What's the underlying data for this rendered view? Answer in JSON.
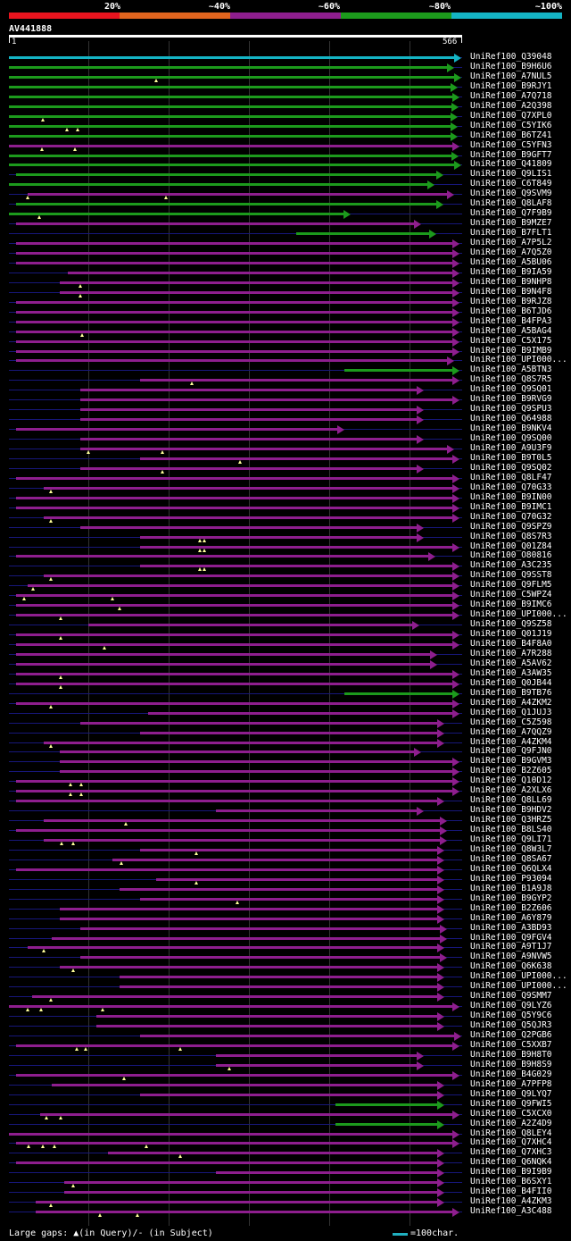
{
  "identity_scale": {
    "labels": [
      "20%",
      "~40%",
      "~60%",
      "~80%",
      "~100%"
    ],
    "colors": [
      "#e8141e",
      "#e0641e",
      "#8e1e8e",
      "#1c9a1c",
      "#14b4c4"
    ]
  },
  "query": {
    "name": "AV441888",
    "start": "1",
    "end": "566",
    "length": 566
  },
  "legend": {
    "gaps_text": "Large gaps: ▲(in Query)/- (in Subject)",
    "scale_text": "=100char.",
    "scale_color": "#20b0c0"
  },
  "hits": [
    {
      "name": "UniRef100_Q39048",
      "s": 1,
      "e": 566,
      "c": 4,
      "g": []
    },
    {
      "name": "UniRef100_B9H6U6",
      "s": 1,
      "e": 557,
      "c": 3,
      "g": []
    },
    {
      "name": "UniRef100_A7NUL5",
      "s": 1,
      "e": 566,
      "c": 3,
      "g": [
        185
      ]
    },
    {
      "name": "UniRef100_B9RJY1",
      "s": 1,
      "e": 562,
      "c": 3,
      "g": []
    },
    {
      "name": "UniRef100_A7Q718",
      "s": 1,
      "e": 564,
      "c": 3,
      "g": []
    },
    {
      "name": "UniRef100_A2Q398",
      "s": 1,
      "e": 563,
      "c": 3,
      "g": []
    },
    {
      "name": "UniRef100_Q7XPL0",
      "s": 1,
      "e": 562,
      "c": 3,
      "g": [
        43
      ]
    },
    {
      "name": "UniRef100_C5YIK6",
      "s": 1,
      "e": 561,
      "c": 3,
      "g": [
        74,
        87
      ]
    },
    {
      "name": "UniRef100_B6TZ41",
      "s": 1,
      "e": 561,
      "c": 3,
      "g": []
    },
    {
      "name": "UniRef100_C5YFN3",
      "s": 1,
      "e": 564,
      "c": 2,
      "g": [
        42,
        84
      ]
    },
    {
      "name": "UniRef100_B9GFT7",
      "s": 1,
      "e": 563,
      "c": 3,
      "g": []
    },
    {
      "name": "UniRef100_Q41809",
      "s": 1,
      "e": 566,
      "c": 3,
      "g": []
    },
    {
      "name": "UniRef100_Q9LIS1",
      "s": 10,
      "e": 544,
      "c": 3,
      "g": []
    },
    {
      "name": "UniRef100_C6T849",
      "s": 1,
      "e": 532,
      "c": 3,
      "g": []
    },
    {
      "name": "UniRef100_Q9SVM9",
      "s": 25,
      "e": 557,
      "c": 2,
      "g": [
        25,
        197
      ]
    },
    {
      "name": "UniRef100_Q8LAF8",
      "s": 10,
      "e": 544,
      "c": 3,
      "g": []
    },
    {
      "name": "UniRef100_Q7F9B9",
      "s": 1,
      "e": 427,
      "c": 3,
      "g": [
        39
      ]
    },
    {
      "name": "UniRef100_B9MZE7",
      "s": 10,
      "e": 516,
      "c": 2,
      "g": []
    },
    {
      "name": "UniRef100_B7FLT1",
      "s": 360,
      "e": 535,
      "c": 3,
      "g": []
    },
    {
      "name": "UniRef100_A7P5L2",
      "s": 10,
      "e": 564,
      "c": 2,
      "g": []
    },
    {
      "name": "UniRef100_A7Q5Z0",
      "s": 10,
      "e": 564,
      "c": 2,
      "g": []
    },
    {
      "name": "UniRef100_A5BU06",
      "s": 10,
      "e": 564,
      "c": 2,
      "g": []
    },
    {
      "name": "UniRef100_B9IA59",
      "s": 75,
      "e": 564,
      "c": 2,
      "g": []
    },
    {
      "name": "UniRef100_B9NHP8",
      "s": 65,
      "e": 564,
      "c": 2,
      "g": [
        90
      ]
    },
    {
      "name": "UniRef100_B9N4F8",
      "s": 65,
      "e": 564,
      "c": 2,
      "g": [
        90
      ]
    },
    {
      "name": "UniRef100_B9RJZ8",
      "s": 10,
      "e": 564,
      "c": 2,
      "g": []
    },
    {
      "name": "UniRef100_B6TJD6",
      "s": 10,
      "e": 564,
      "c": 2,
      "g": []
    },
    {
      "name": "UniRef100_B4FPA3",
      "s": 10,
      "e": 564,
      "c": 2,
      "g": []
    },
    {
      "name": "UniRef100_A5BAG4",
      "s": 10,
      "e": 564,
      "c": 2,
      "g": [
        93
      ]
    },
    {
      "name": "UniRef100_C5X175",
      "s": 10,
      "e": 564,
      "c": 2,
      "g": []
    },
    {
      "name": "UniRef100_B9IMB9",
      "s": 10,
      "e": 564,
      "c": 2,
      "g": []
    },
    {
      "name": "UniRef100_UPI000...",
      "s": 10,
      "e": 557,
      "c": 2,
      "g": []
    },
    {
      "name": "UniRef100_A5BTN3",
      "s": 421,
      "e": 564,
      "c": 3,
      "g": []
    },
    {
      "name": "UniRef100_Q8S7R5",
      "s": 165,
      "e": 564,
      "c": 2,
      "g": [
        230
      ]
    },
    {
      "name": "UniRef100_Q9SQ01",
      "s": 90,
      "e": 519,
      "c": 2,
      "g": []
    },
    {
      "name": "UniRef100_B9RVG9",
      "s": 90,
      "e": 564,
      "c": 2,
      "g": []
    },
    {
      "name": "UniRef100_Q9SPU3",
      "s": 90,
      "e": 519,
      "c": 2,
      "g": []
    },
    {
      "name": "UniRef100_Q64988",
      "s": 90,
      "e": 519,
      "c": 2,
      "g": []
    },
    {
      "name": "UniRef100_B9NKV4",
      "s": 10,
      "e": 420,
      "c": 2,
      "g": []
    },
    {
      "name": "UniRef100_Q9SQ00",
      "s": 90,
      "e": 519,
      "c": 2,
      "g": []
    },
    {
      "name": "UniRef100_A9U3F9",
      "s": 90,
      "e": 557,
      "c": 2,
      "g": [
        100,
        193
      ]
    },
    {
      "name": "UniRef100_B9T0L5",
      "s": 165,
      "e": 564,
      "c": 2,
      "g": [
        290
      ]
    },
    {
      "name": "UniRef100_Q9SQ02",
      "s": 90,
      "e": 519,
      "c": 2,
      "g": [
        193
      ]
    },
    {
      "name": "UniRef100_Q8LF47",
      "s": 10,
      "e": 564,
      "c": 2,
      "g": []
    },
    {
      "name": "UniRef100_Q70G33",
      "s": 45,
      "e": 564,
      "c": 2,
      "g": [
        53
      ]
    },
    {
      "name": "UniRef100_B9IN00",
      "s": 10,
      "e": 564,
      "c": 2,
      "g": []
    },
    {
      "name": "UniRef100_B9IMC1",
      "s": 10,
      "e": 564,
      "c": 2,
      "g": []
    },
    {
      "name": "UniRef100_Q70G32",
      "s": 45,
      "e": 564,
      "c": 2,
      "g": [
        53
      ]
    },
    {
      "name": "UniRef100_Q9SPZ9",
      "s": 90,
      "e": 519,
      "c": 2,
      "g": []
    },
    {
      "name": "UniRef100_Q8S7R3",
      "s": 165,
      "e": 519,
      "c": 2,
      "g": [
        240,
        246
      ]
    },
    {
      "name": "UniRef100_Q01Z84",
      "s": 165,
      "e": 564,
      "c": 2,
      "g": [
        240,
        246
      ]
    },
    {
      "name": "UniRef100_O80816",
      "s": 10,
      "e": 534,
      "c": 2,
      "g": []
    },
    {
      "name": "UniRef100_A3C235",
      "s": 165,
      "e": 564,
      "c": 2,
      "g": [
        240,
        246
      ]
    },
    {
      "name": "UniRef100_Q9SST8",
      "s": 45,
      "e": 564,
      "c": 2,
      "g": [
        53
      ]
    },
    {
      "name": "UniRef100_Q9FLM5",
      "s": 25,
      "e": 564,
      "c": 2,
      "g": [
        31
      ]
    },
    {
      "name": "UniRef100_C5WPZ4",
      "s": 10,
      "e": 564,
      "c": 2,
      "g": [
        20,
        130
      ]
    },
    {
      "name": "UniRef100_B9IMC6",
      "s": 10,
      "e": 564,
      "c": 2,
      "g": [
        140
      ]
    },
    {
      "name": "UniRef100_UPI000...",
      "s": 10,
      "e": 564,
      "c": 2,
      "g": [
        66
      ]
    },
    {
      "name": "UniRef100_Q9SZ58",
      "s": 100,
      "e": 513,
      "c": 2,
      "g": []
    },
    {
      "name": "UniRef100_Q01J19",
      "s": 10,
      "e": 564,
      "c": 2,
      "g": [
        66
      ]
    },
    {
      "name": "UniRef100_B4F8A0",
      "s": 10,
      "e": 564,
      "c": 2,
      "g": [
        120
      ]
    },
    {
      "name": "UniRef100_A7R288",
      "s": 10,
      "e": 536,
      "c": 2,
      "g": []
    },
    {
      "name": "UniRef100_A5AV62",
      "s": 10,
      "e": 536,
      "c": 2,
      "g": []
    },
    {
      "name": "UniRef100_A3AW35",
      "s": 10,
      "e": 564,
      "c": 2,
      "g": [
        66
      ]
    },
    {
      "name": "UniRef100_Q0JB44",
      "s": 10,
      "e": 564,
      "c": 2,
      "g": [
        66
      ]
    },
    {
      "name": "UniRef100_B9TB76",
      "s": 421,
      "e": 564,
      "c": 3,
      "g": []
    },
    {
      "name": "UniRef100_A4ZKM2",
      "s": 10,
      "e": 564,
      "c": 2,
      "g": [
        53
      ]
    },
    {
      "name": "UniRef100_Q1JUJ3",
      "s": 175,
      "e": 564,
      "c": 2,
      "g": []
    },
    {
      "name": "UniRef100_C5Z598",
      "s": 90,
      "e": 545,
      "c": 2,
      "g": []
    },
    {
      "name": "UniRef100_A7QQZ9",
      "s": 165,
      "e": 545,
      "c": 2,
      "g": []
    },
    {
      "name": "UniRef100_A4ZKM4",
      "s": 45,
      "e": 545,
      "c": 2,
      "g": [
        53
      ]
    },
    {
      "name": "UniRef100_Q9FJN0",
      "s": 65,
      "e": 516,
      "c": 2,
      "g": []
    },
    {
      "name": "UniRef100_B9GVM3",
      "s": 65,
      "e": 564,
      "c": 2,
      "g": []
    },
    {
      "name": "UniRef100_B2Z605",
      "s": 65,
      "e": 564,
      "c": 2,
      "g": []
    },
    {
      "name": "UniRef100_Q10D12",
      "s": 10,
      "e": 564,
      "c": 2,
      "g": [
        78,
        91
      ]
    },
    {
      "name": "UniRef100_A2XLX6",
      "s": 10,
      "e": 564,
      "c": 2,
      "g": [
        78,
        91
      ]
    },
    {
      "name": "UniRef100_Q8LL69",
      "s": 10,
      "e": 545,
      "c": 2,
      "g": []
    },
    {
      "name": "UniRef100_B9HDV2",
      "s": 260,
      "e": 519,
      "c": 2,
      "g": []
    },
    {
      "name": "UniRef100_Q3HRZ5",
      "s": 45,
      "e": 548,
      "c": 2,
      "g": [
        147
      ]
    },
    {
      "name": "UniRef100_B8LS40",
      "s": 10,
      "e": 548,
      "c": 2,
      "g": []
    },
    {
      "name": "UniRef100_Q9LI71",
      "s": 45,
      "e": 548,
      "c": 2,
      "g": [
        67,
        81
      ]
    },
    {
      "name": "UniRef100_Q8W3L7",
      "s": 165,
      "e": 545,
      "c": 2,
      "g": [
        236
      ]
    },
    {
      "name": "UniRef100_Q8SA67",
      "s": 130,
      "e": 545,
      "c": 2,
      "g": [
        142
      ]
    },
    {
      "name": "UniRef100_Q6QLX4",
      "s": 10,
      "e": 545,
      "c": 2,
      "g": []
    },
    {
      "name": "UniRef100_P93094",
      "s": 185,
      "e": 545,
      "c": 2,
      "g": [
        236
      ]
    },
    {
      "name": "UniRef100_B1A9J8",
      "s": 140,
      "e": 545,
      "c": 2,
      "g": []
    },
    {
      "name": "UniRef100_B9GYP2",
      "s": 165,
      "e": 545,
      "c": 2,
      "g": [
        287
      ]
    },
    {
      "name": "UniRef100_B2Z606",
      "s": 65,
      "e": 545,
      "c": 2,
      "g": []
    },
    {
      "name": "UniRef100_A6Y879",
      "s": 65,
      "e": 545,
      "c": 2,
      "g": []
    },
    {
      "name": "UniRef100_A3BD93",
      "s": 90,
      "e": 548,
      "c": 2,
      "g": []
    },
    {
      "name": "UniRef100_Q9FGV4",
      "s": 55,
      "e": 548,
      "c": 2,
      "g": []
    },
    {
      "name": "UniRef100_A9T1J7",
      "s": 25,
      "e": 545,
      "c": 2,
      "g": [
        45
      ]
    },
    {
      "name": "UniRef100_A9NVW5",
      "s": 90,
      "e": 548,
      "c": 2,
      "g": []
    },
    {
      "name": "UniRef100_Q6K638",
      "s": 65,
      "e": 545,
      "c": 2,
      "g": [
        81
      ]
    },
    {
      "name": "UniRef100_UPI000...",
      "s": 140,
      "e": 545,
      "c": 2,
      "g": []
    },
    {
      "name": "UniRef100_UPI000...",
      "s": 140,
      "e": 545,
      "c": 2,
      "g": []
    },
    {
      "name": "UniRef100_Q9SMM7",
      "s": 30,
      "e": 545,
      "c": 2,
      "g": [
        53
      ]
    },
    {
      "name": "UniRef100_Q9LYZ6",
      "s": 1,
      "e": 564,
      "c": 2,
      "g": [
        24,
        41,
        118
      ]
    },
    {
      "name": "UniRef100_Q5Y9C6",
      "s": 110,
      "e": 545,
      "c": 2,
      "g": []
    },
    {
      "name": "UniRef100_Q5QJR3",
      "s": 110,
      "e": 545,
      "c": 2,
      "g": []
    },
    {
      "name": "UniRef100_Q2PGB6",
      "s": 165,
      "e": 566,
      "c": 2,
      "g": []
    },
    {
      "name": "UniRef100_C5XXB7",
      "s": 10,
      "e": 564,
      "c": 2,
      "g": [
        86,
        97,
        215
      ]
    },
    {
      "name": "UniRef100_B9H8T0",
      "s": 260,
      "e": 519,
      "c": 2,
      "g": []
    },
    {
      "name": "UniRef100_B9H8S9",
      "s": 260,
      "e": 519,
      "c": 2,
      "g": [
        277
      ]
    },
    {
      "name": "UniRef100_B4G029",
      "s": 10,
      "e": 564,
      "c": 2,
      "g": [
        145
      ]
    },
    {
      "name": "UniRef100_A7PFP8",
      "s": 55,
      "e": 545,
      "c": 2,
      "g": []
    },
    {
      "name": "UniRef100_Q9LYQ7",
      "s": 165,
      "e": 545,
      "c": 2,
      "g": []
    },
    {
      "name": "UniRef100_Q9FWI5",
      "s": 410,
      "e": 545,
      "c": 3,
      "g": []
    },
    {
      "name": "UniRef100_C5XCX0",
      "s": 40,
      "e": 564,
      "c": 2,
      "g": [
        48,
        66
      ]
    },
    {
      "name": "UniRef100_A2Z4D9",
      "s": 410,
      "e": 545,
      "c": 3,
      "g": []
    },
    {
      "name": "UniRef100_Q8LEY4",
      "s": 1,
      "e": 564,
      "c": 2,
      "g": []
    },
    {
      "name": "UniRef100_Q7XHC4",
      "s": 10,
      "e": 564,
      "c": 2,
      "g": [
        26,
        43,
        58,
        173
      ]
    },
    {
      "name": "UniRef100_Q7XHC3",
      "s": 125,
      "e": 545,
      "c": 2,
      "g": [
        215
      ]
    },
    {
      "name": "UniRef100_Q6NQK4",
      "s": 10,
      "e": 545,
      "c": 2,
      "g": []
    },
    {
      "name": "UniRef100_B9I9B9",
      "s": 260,
      "e": 545,
      "c": 2,
      "g": []
    },
    {
      "name": "UniRef100_B6SXY1",
      "s": 70,
      "e": 545,
      "c": 2,
      "g": [
        81
      ]
    },
    {
      "name": "UniRef100_B4FII0",
      "s": 70,
      "e": 545,
      "c": 2,
      "g": []
    },
    {
      "name": "UniRef100_A4ZKM3",
      "s": 35,
      "e": 545,
      "c": 2,
      "g": [
        53
      ]
    },
    {
      "name": "UniRef100_A3C488",
      "s": 35,
      "e": 564,
      "c": 2,
      "g": [
        115,
        162
      ]
    }
  ]
}
